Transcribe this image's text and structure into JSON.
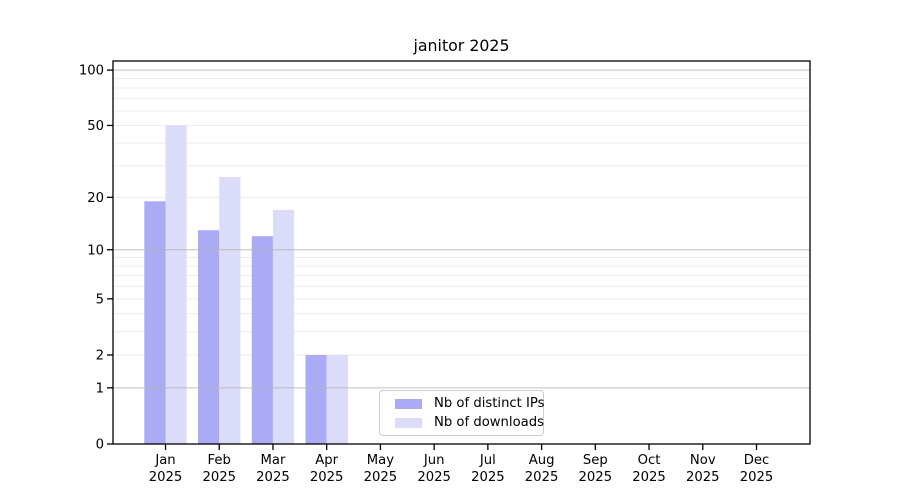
{
  "chart_data": {
    "type": "bar",
    "title": "janitor 2025",
    "y_scale": "log1p",
    "grid": true,
    "legend_position": "lower center",
    "x_categories": [
      "Jan 2025",
      "Feb 2025",
      "Mar 2025",
      "Apr 2025",
      "May 2025",
      "Jun 2025",
      "Jul 2025",
      "Aug 2025",
      "Sep 2025",
      "Oct 2025",
      "Nov 2025",
      "Dec 2025"
    ],
    "x_tick_months": [
      "Jan",
      "Feb",
      "Mar",
      "Apr",
      "May",
      "Jun",
      "Jul",
      "Aug",
      "Sep",
      "Oct",
      "Nov",
      "Dec"
    ],
    "x_tick_year": "2025",
    "series": [
      {
        "name": "Nb of distinct IPs",
        "color": "#aaaaf5",
        "values": [
          19,
          13,
          12,
          2,
          0,
          0,
          0,
          0,
          0,
          0,
          0,
          0
        ]
      },
      {
        "name": "Nb of downloads",
        "color": "#dbdbfa",
        "values": [
          50,
          26,
          17,
          2,
          0,
          0,
          0,
          0,
          0,
          0,
          0,
          0
        ]
      }
    ],
    "y_ticks": [
      0,
      1,
      2,
      5,
      10,
      20,
      50,
      100
    ],
    "y_minor_gridlines": [
      2,
      3,
      4,
      5,
      6,
      7,
      8,
      9,
      20,
      30,
      40,
      50,
      60,
      70,
      80,
      90
    ],
    "y_major_gridlines": [
      1,
      10,
      100
    ],
    "ylim": [
      0,
      113
    ]
  },
  "legend": {
    "items": [
      {
        "label": "Nb of distinct IPs",
        "color": "#aaaaf5"
      },
      {
        "label": "Nb of downloads",
        "color": "#dbdbfa"
      }
    ]
  },
  "axis_colors": {
    "frame": "#000000",
    "major_grid": "#b5b5b5",
    "minor_grid": "#ececec",
    "tick_label": "#000000"
  }
}
